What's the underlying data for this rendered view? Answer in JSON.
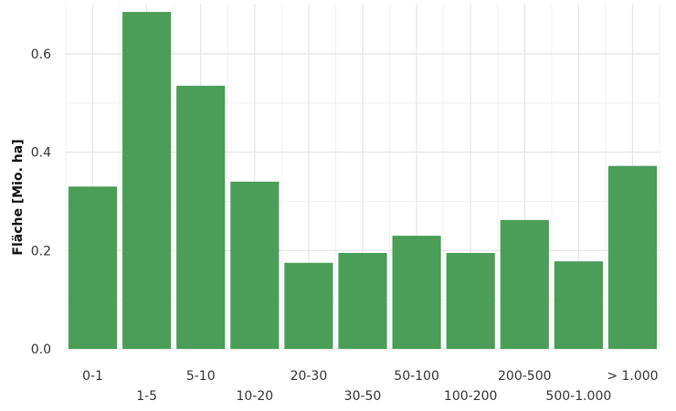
{
  "chart_data": {
    "type": "bar",
    "title": "",
    "xlabel": "",
    "ylabel": "Fläche [Mio. ha]",
    "categories": [
      "0-1",
      "1-5",
      "5-10",
      "10-20",
      "20-30",
      "30-50",
      "50-100",
      "100-200",
      "200-500",
      "500-1.000",
      "> 1.000"
    ],
    "values": [
      0.33,
      0.685,
      0.535,
      0.34,
      0.175,
      0.195,
      0.23,
      0.195,
      0.262,
      0.178,
      0.372
    ],
    "ylim": [
      0,
      0.7
    ],
    "yticks": [
      0.0,
      0.2,
      0.4,
      0.6
    ],
    "ytick_labels": [
      "0.0",
      "0.2",
      "0.4",
      "0.6"
    ],
    "grid": true,
    "legend": "none",
    "bar_color": "#4a9e57"
  }
}
